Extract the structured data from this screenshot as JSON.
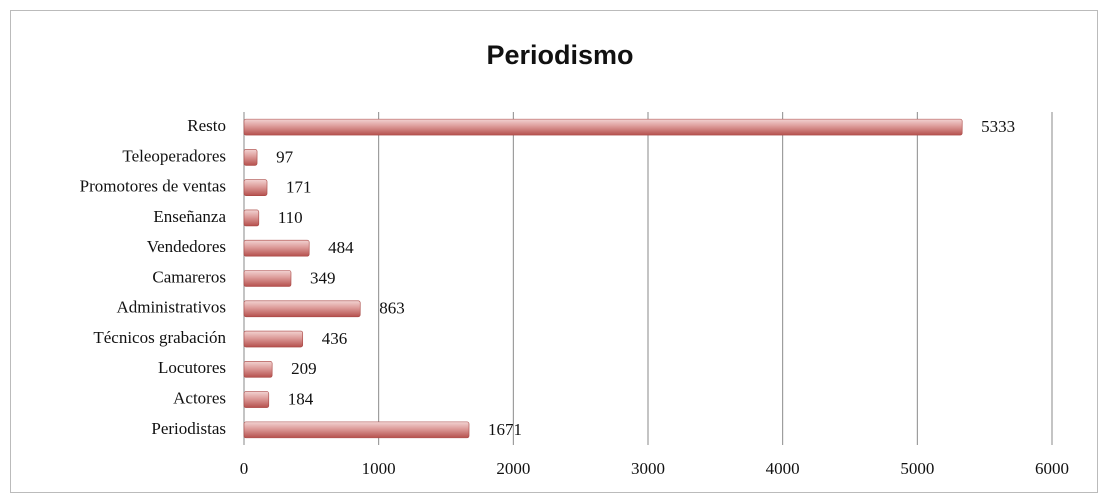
{
  "chart_data": {
    "type": "barh",
    "title": "Periodismo",
    "categories": [
      "Resto",
      "Teleoperadores",
      "Promotores de ventas",
      "Enseñanza",
      "Vendedores",
      "Camareros",
      "Administrativos",
      "Técnicos grabación",
      "Locutores",
      "Actores",
      "Periodistas"
    ],
    "values": [
      5333,
      97,
      171,
      110,
      484,
      349,
      863,
      436,
      209,
      184,
      1671
    ],
    "color": "#d99694",
    "xlim": [
      0,
      6000
    ],
    "xticks": [
      0,
      1000,
      2000,
      3000,
      4000,
      5000,
      6000
    ],
    "grid": true
  }
}
